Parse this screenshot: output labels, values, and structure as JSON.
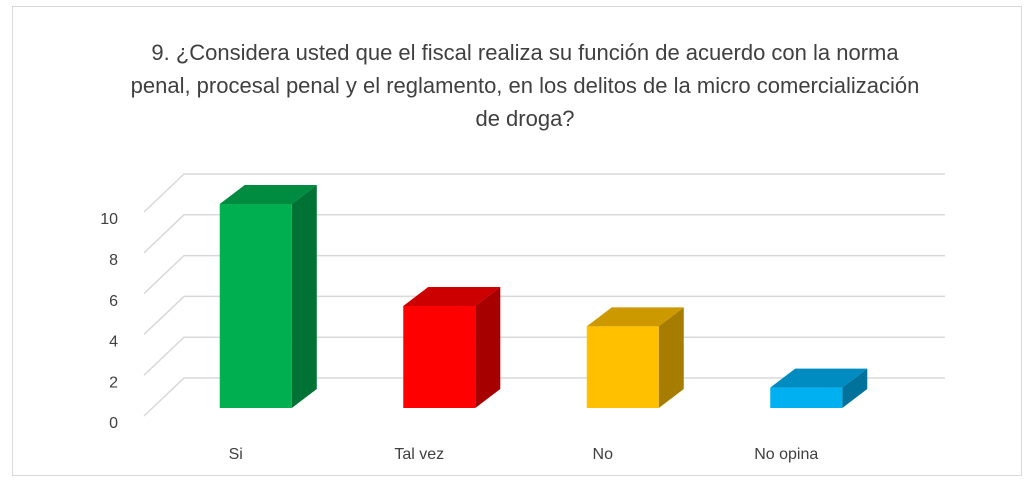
{
  "chart_data": {
    "type": "bar3d",
    "title": "9. ¿Considera usted que el fiscal realiza su función de acuerdo con la norma penal, procesal penal y el reglamento, en los delitos de la micro comercialización de droga?",
    "categories": [
      "Si",
      "Tal vez",
      "No",
      "No opina"
    ],
    "values": [
      10,
      5,
      4,
      1
    ],
    "colors": [
      "#00b050",
      "#ff0000",
      "#ffc000",
      "#00b0f0"
    ],
    "ylim": [
      0,
      10
    ],
    "yticks": [
      0,
      2,
      4,
      6,
      8,
      10
    ],
    "grid": true
  }
}
